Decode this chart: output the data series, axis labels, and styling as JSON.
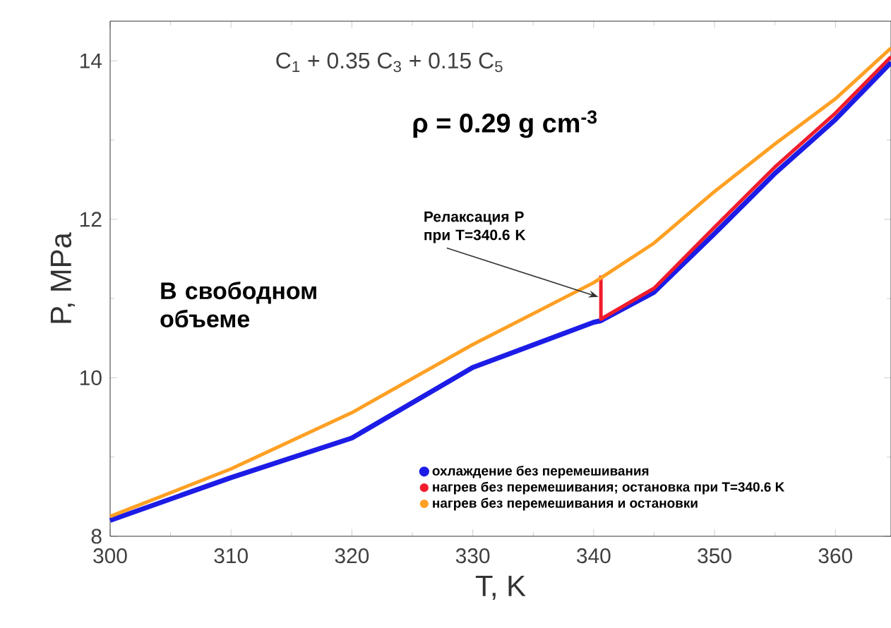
{
  "chart_data": {
    "type": "line",
    "xlabel": "T, K",
    "ylabel": "P, MPa",
    "xlim": [
      300,
      364.6
    ],
    "ylim": [
      8,
      14.5
    ],
    "xticks": [
      300,
      310,
      320,
      330,
      340,
      350,
      360
    ],
    "yticks": [
      8,
      10,
      12,
      14
    ],
    "grid": false,
    "legend": "bottom right",
    "marker": "none",
    "line_style": "solid",
    "series": [
      {
        "name": "охлаждение без перемешивания",
        "color": "#1c1ce6",
        "x": [
          300,
          310,
          320,
          330,
          340,
          340.6,
          345,
          350,
          355,
          360,
          364.6
        ],
        "values": [
          8.2,
          8.74,
          9.24,
          10.13,
          10.7,
          10.72,
          11.08,
          11.82,
          12.58,
          13.26,
          13.98
        ]
      },
      {
        "name": "нагрев без перемешивания; остановка при T=340.6 K",
        "color": "#f01c2c",
        "x": [
          340.6,
          340.6,
          345,
          350,
          355,
          360,
          364.6
        ],
        "values": [
          11.29,
          10.74,
          11.13,
          11.9,
          12.66,
          13.34,
          14.05
        ]
      },
      {
        "name": "нагрев без перемешивания и остановки",
        "color": "#ffa024",
        "x": [
          300,
          310,
          320,
          330,
          340,
          345,
          350,
          355,
          360,
          364.6
        ],
        "values": [
          8.25,
          8.85,
          9.56,
          10.42,
          11.2,
          11.7,
          12.35,
          12.95,
          13.52,
          14.16
        ]
      }
    ],
    "annotations": [
      "C$_{1}$ + 0.35 C$_{3}$ + 0.15 C$_{5}$",
      "ρ = 0.29 g cm$^{-3}$",
      "В свободном объеме",
      {
        "text": "Релаксация P при T=340.6 K",
        "x": 340.4,
        "y": 11.02
      }
    ]
  }
}
